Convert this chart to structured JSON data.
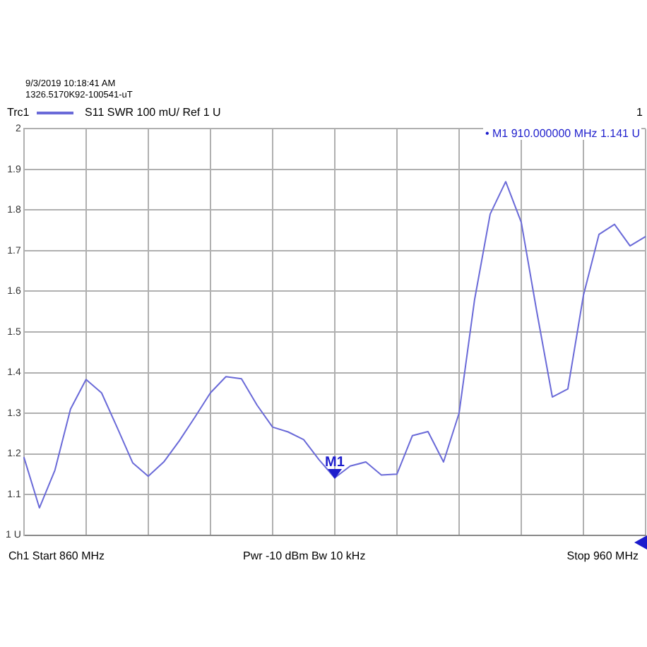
{
  "chart_data": {
    "type": "line",
    "categories": [
      null,
      null,
      null,
      null,
      null,
      null,
      null,
      null,
      null,
      null,
      null,
      null,
      null,
      null,
      null,
      null,
      null,
      null,
      null,
      null,
      null,
      null,
      null,
      null,
      null,
      null,
      null,
      null,
      null,
      null,
      null,
      null,
      null,
      null,
      null,
      null,
      null,
      null,
      null,
      null,
      null
    ],
    "series": [
      {
        "name": "Trc1",
        "color": "#6a6ad8",
        "values": [
          1.192,
          1.067,
          1.16,
          1.31,
          1.383,
          1.35,
          1.265,
          1.178,
          1.145,
          1.18,
          1.232,
          1.29,
          1.35,
          1.39,
          1.385,
          1.32,
          1.266,
          1.254,
          1.235,
          1.185,
          1.141,
          1.17,
          1.18,
          1.148,
          1.15,
          1.245,
          1.255,
          1.18,
          1.3,
          1.58,
          1.79,
          1.87,
          1.77,
          1.55,
          1.34,
          1.36,
          1.59,
          1.74,
          1.765,
          1.712,
          1.735
        ]
      }
    ],
    "ylim": [
      1,
      2
    ],
    "yticks": [
      {
        "value": 1,
        "label": "1 U"
      },
      1.1,
      1.2,
      1.3,
      1.4,
      1.5,
      1.6,
      1.7,
      1.8,
      1.9,
      2
    ],
    "tick_labels": "y",
    "grid": true,
    "legend": "top left",
    "marker": "none",
    "line_style": "solid",
    "annotations": [
      "9/3/2019 10:18:41 AM",
      "1326.5170K92-100541-uT",
      "S11  SWR  100 mU/ Ref 1 U",
      "1",
      "• M1  910.000000  MHz  1.141 U",
      {
        "text": "M1",
        "y": 1.141
      },
      "Ch1  Start  860 MHz",
      "Pwr  -10 dBm  Bw  10 kHz",
      "Stop  960 MHz"
    ]
  }
}
